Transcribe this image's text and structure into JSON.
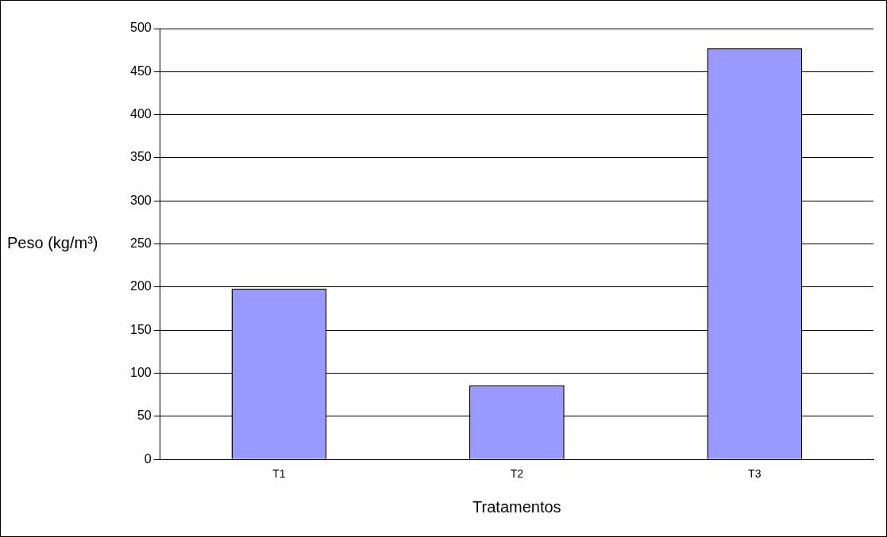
{
  "chart_data": {
    "type": "bar",
    "categories": [
      "T1",
      "T2",
      "T3"
    ],
    "values": [
      198,
      86,
      477
    ],
    "color": "#9999ff",
    "ylim": [
      0,
      500
    ],
    "yticks": [
      0,
      50,
      100,
      150,
      200,
      250,
      300,
      350,
      400,
      450,
      500
    ],
    "grid": "y",
    "xlabel": "Tratamentos",
    "ylabel": "Peso (kg/m³)",
    "legend": false
  }
}
